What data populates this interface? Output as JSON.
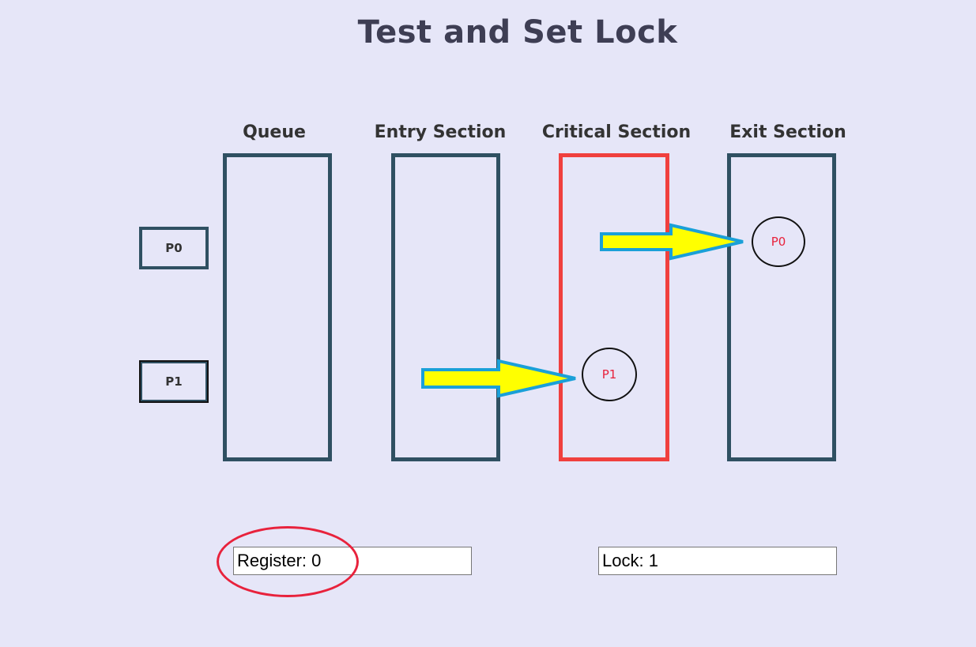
{
  "title": "Test and Set Lock",
  "columns": {
    "queue": "Queue",
    "entry": "Entry Section",
    "critical": "Critical Section",
    "exit": "Exit Section"
  },
  "process_buttons": {
    "p0": "P0",
    "p1": "P1"
  },
  "process_tokens": {
    "critical": "P1",
    "exit": "P0"
  },
  "readouts": {
    "register": "Register: 0",
    "lock": "Lock: 1"
  },
  "colors": {
    "background": "#e6e6f8",
    "box_border": "#2f5062",
    "critical_border": "#f0403e",
    "arrow_fill": "#ffff00",
    "arrow_stroke": "#1aa0d8",
    "token_text": "#e8223c",
    "highlight": "#e8223c"
  }
}
